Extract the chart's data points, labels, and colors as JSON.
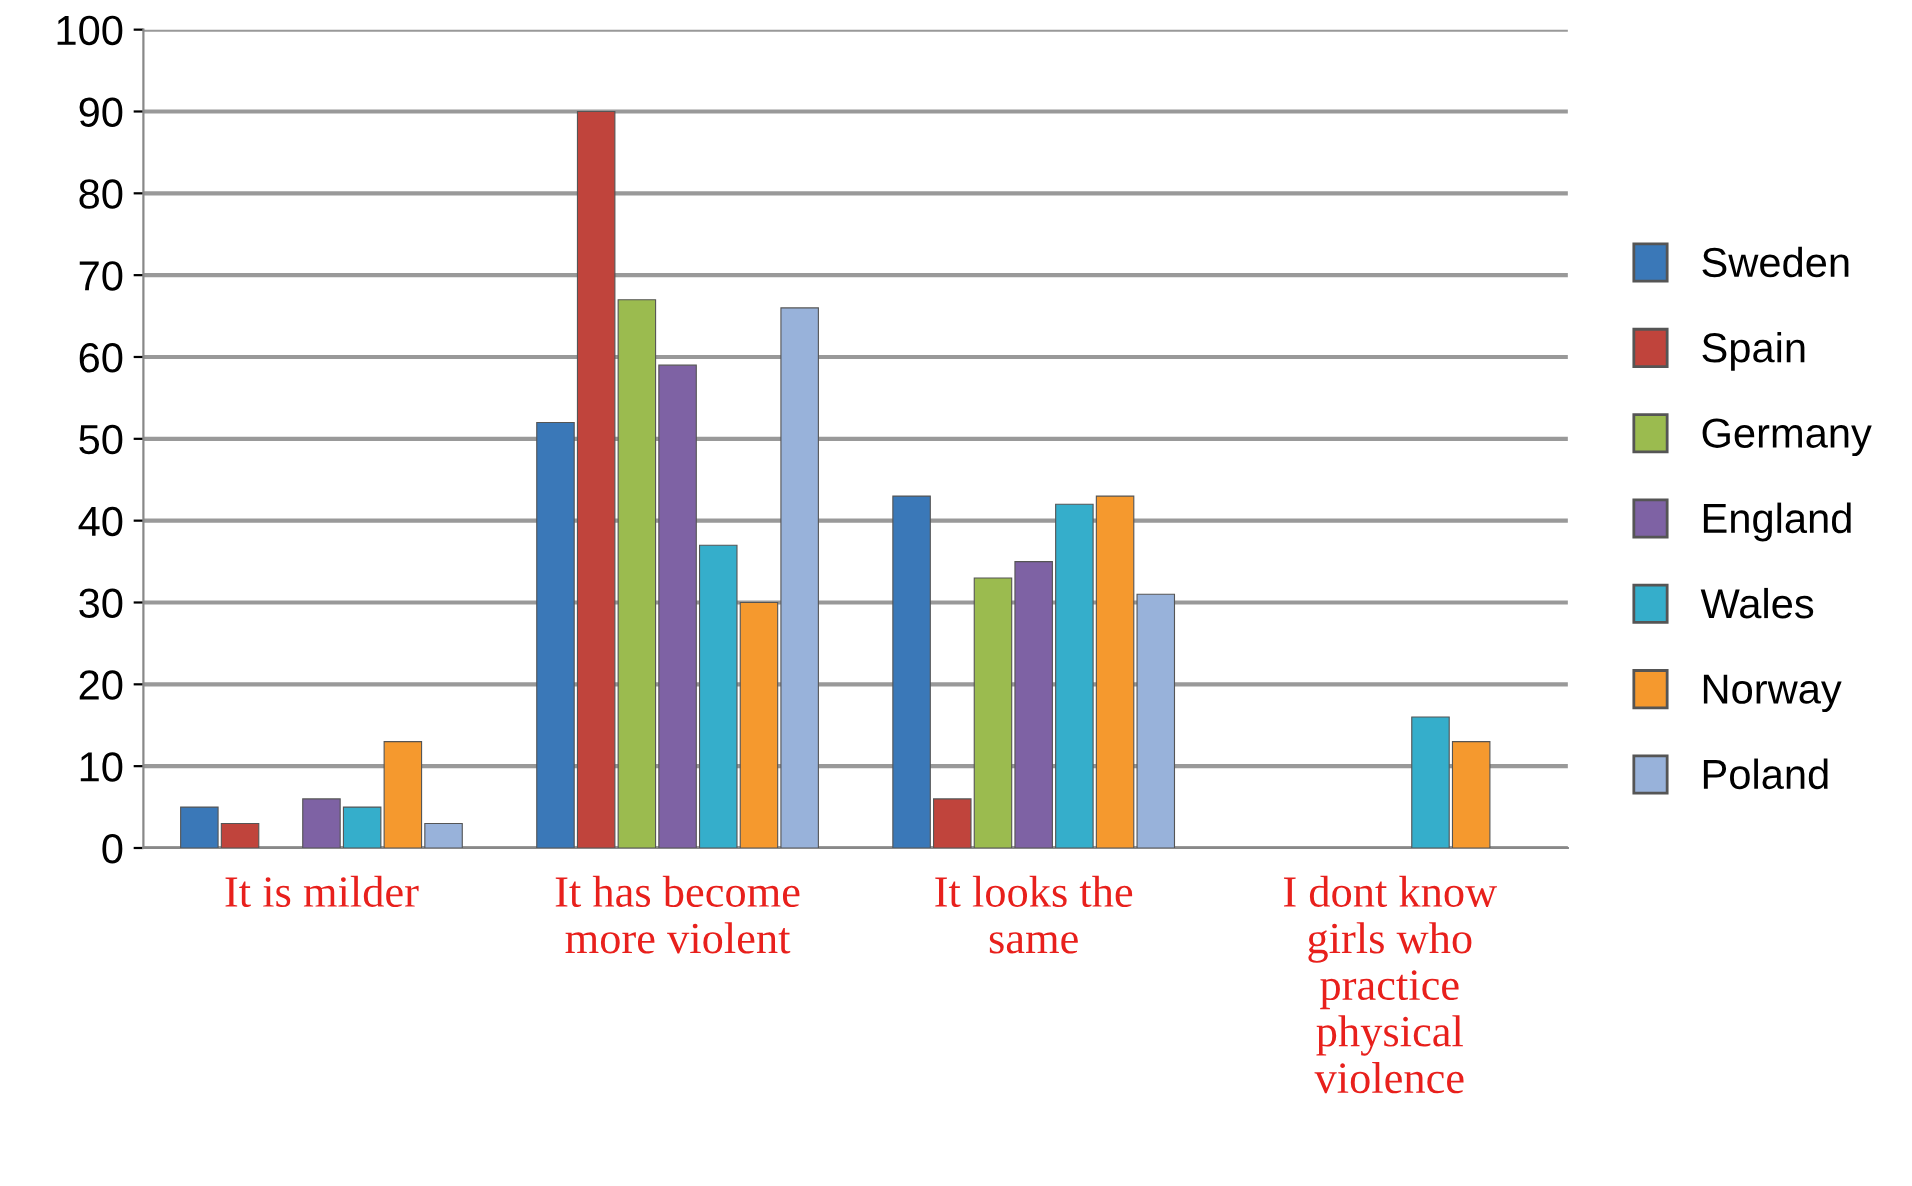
{
  "chart_data": {
    "type": "bar",
    "categories": [
      "It is milder",
      "It has become\nmore violent",
      "It looks the\nsame",
      "I dont know\ngirls who\npractice\nphysical\nviolence"
    ],
    "series": [
      {
        "name": "Sweden",
        "color": "#3a78b8",
        "values": [
          5,
          52,
          43,
          null
        ]
      },
      {
        "name": "Spain",
        "color": "#c0443c",
        "values": [
          3,
          90,
          6,
          null
        ]
      },
      {
        "name": "Germany",
        "color": "#9bbb4f",
        "values": [
          null,
          67,
          33,
          null
        ]
      },
      {
        "name": "England",
        "color": "#7e62a4",
        "values": [
          6,
          59,
          35,
          null
        ]
      },
      {
        "name": "Wales",
        "color": "#35aecb",
        "values": [
          5,
          37,
          42,
          16
        ]
      },
      {
        "name": "Norway",
        "color": "#f5992e",
        "values": [
          13,
          30,
          43,
          13
        ]
      },
      {
        "name": "Poland",
        "color": "#98b2da",
        "values": [
          3,
          66,
          31,
          null
        ]
      }
    ],
    "ylim": [
      0,
      100
    ],
    "yticks": [
      0,
      10,
      20,
      30,
      40,
      50,
      60,
      70,
      80,
      90,
      100
    ],
    "grid": "y",
    "legend": "right"
  }
}
